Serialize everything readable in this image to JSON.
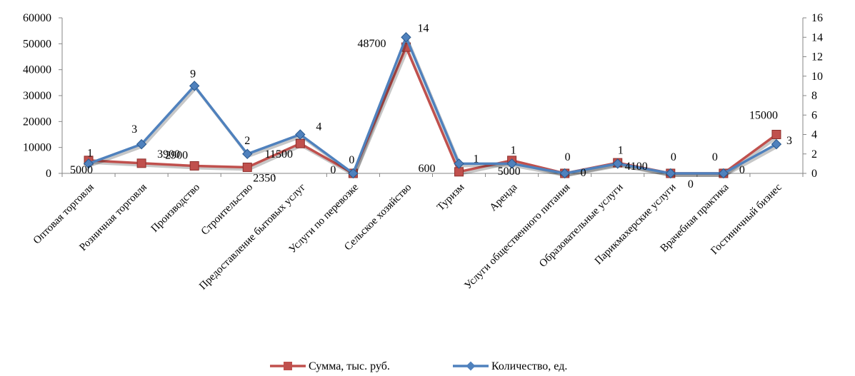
{
  "chart_data": {
    "type": "line",
    "categories": [
      "Оптовая торговля",
      "Розничная торговля",
      "Производство",
      "Строительство",
      "Предоставление бытовых услуг",
      "Услуги по перевозке",
      "Сельское хозяйство",
      "Туризм",
      "Аренда",
      "Услуги общественного питания",
      "Образовательные услуги",
      "Парикмахерские услуги",
      "Врачебная практика",
      "Гостиничный бизнес"
    ],
    "series": [
      {
        "name": "Сумма, тыс. руб.",
        "axis": "left",
        "color": "#c0504d",
        "marker": "square",
        "values": [
          5000,
          3900,
          2900,
          2350,
          11500,
          0,
          48700,
          600,
          5000,
          0,
          4100,
          0,
          0,
          15000
        ],
        "labels": [
          "5000",
          "3900",
          "2900",
          "2350",
          "11500",
          "0",
          "48700",
          "600",
          "5000",
          "0",
          "4100",
          "0",
          "0",
          "15000"
        ]
      },
      {
        "name": "Количество, ед.",
        "axis": "right",
        "color": "#4f81bd",
        "marker": "diamond",
        "values": [
          1,
          3,
          9,
          2,
          4,
          0,
          14,
          1,
          1,
          0,
          1,
          0,
          0,
          3
        ],
        "labels": [
          "1",
          "3",
          "9",
          "2",
          "4",
          "0",
          "14",
          "1",
          "1",
          "0",
          "1",
          "0",
          "0",
          "3"
        ]
      }
    ],
    "y_left": {
      "min": 0,
      "max": 60000,
      "ticks": [
        "0",
        "10000",
        "20000",
        "30000",
        "40000",
        "50000",
        "60000"
      ]
    },
    "y_right": {
      "min": 0,
      "max": 16,
      "ticks": [
        "0",
        "2",
        "4",
        "6",
        "8",
        "10",
        "12",
        "14",
        "16"
      ]
    },
    "grid": false,
    "legend": "bottom-center"
  }
}
